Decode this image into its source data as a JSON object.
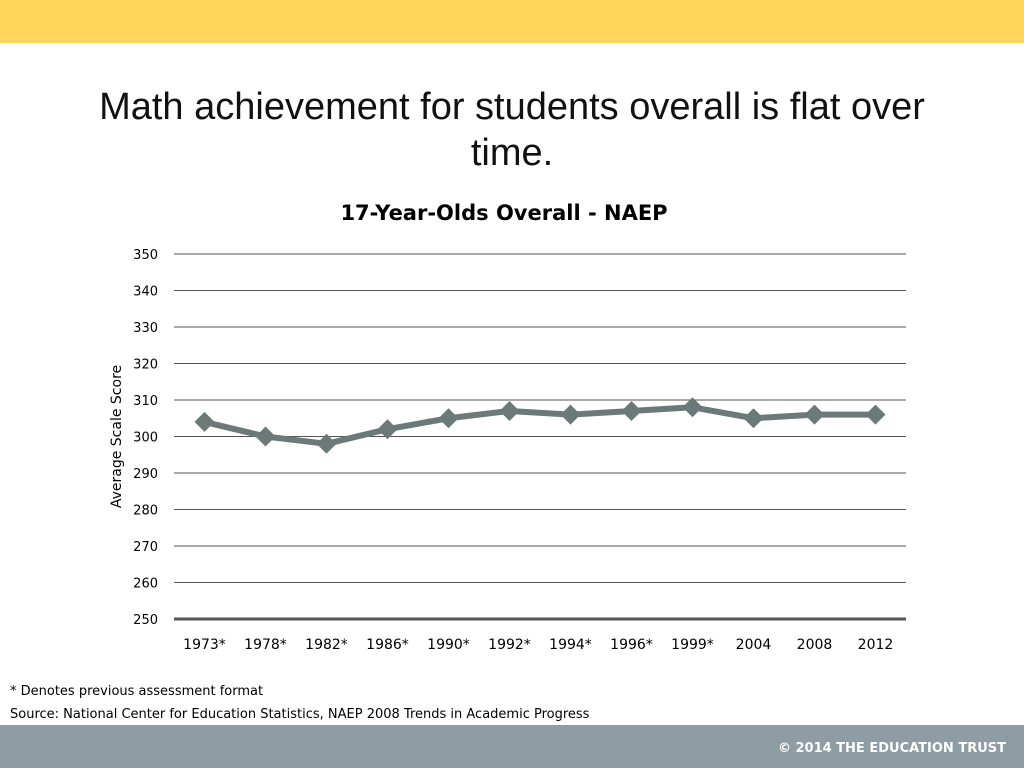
{
  "slide": {
    "title": "Math achievement for students overall is flat over time.",
    "footnote_1": "* Denotes previous assessment format",
    "footnote_2": "Source: National Center for Education Statistics, NAEP 2008 Trends in Academic Progress",
    "footer": "© 2014 THE EDUCATION TRUST"
  },
  "colors": {
    "top_bar": "#ffd55a",
    "footer_bar": "#8e9ca4",
    "series": "#6b7a78",
    "gridline": "#555555",
    "baseline": "#555555"
  },
  "chart_data": {
    "type": "line",
    "title": "17-Year-Olds Overall - NAEP",
    "xlabel": "",
    "ylabel": "Average Scale Score",
    "ylim": [
      250,
      350
    ],
    "yticks": [
      250,
      260,
      270,
      280,
      290,
      300,
      310,
      320,
      330,
      340,
      350
    ],
    "grid": true,
    "legend": "none",
    "categories": [
      "1973*",
      "1978*",
      "1982*",
      "1986*",
      "1990*",
      "1992*",
      "1994*",
      "1996*",
      "1999*",
      "2004",
      "2008",
      "2012"
    ],
    "series": [
      {
        "values": [
          304,
          300,
          298,
          302,
          305,
          307,
          306,
          307,
          308,
          305,
          306,
          306
        ],
        "marker": "diamond"
      }
    ]
  }
}
